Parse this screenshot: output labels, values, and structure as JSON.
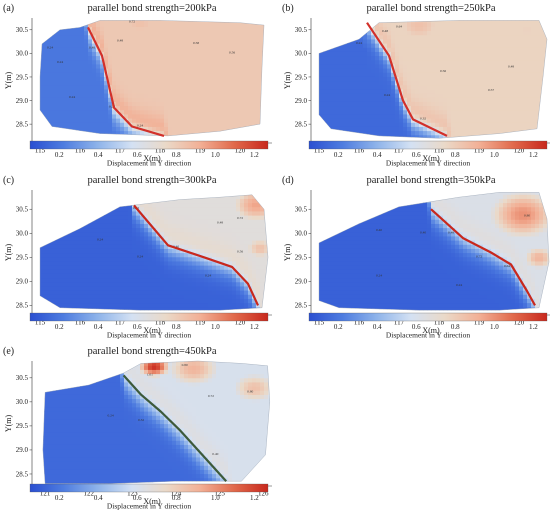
{
  "colorbar": {
    "stops": [
      "#2a4fd1",
      "#4f7de0",
      "#8fb4ea",
      "#d4e1f3",
      "#ead9c8",
      "#f2b096",
      "#e16a4c",
      "#c8281d"
    ],
    "ticks": [
      0.2,
      0.4,
      0.6,
      0.8,
      1.0,
      1.2
    ],
    "tick_labels": [
      "0.2",
      "0.4",
      "0.6",
      "0.8",
      "1.0",
      "1.2"
    ],
    "vmin": 0.05,
    "vmax": 1.27,
    "label": "Displacement in Y direction"
  },
  "chart_data": [
    {
      "type": "heatmap",
      "id": "a",
      "panel_label": "(a)",
      "title": "parallel bond strength=200kPa",
      "xlabel": "X(m)",
      "ylabel": "Y(m)",
      "xlim": [
        114.8,
        120.8
      ],
      "ylim": [
        28.1,
        30.75
      ],
      "xticks": [
        115,
        116,
        117,
        118,
        119,
        120
      ],
      "xtick_labels": [
        "115",
        "116",
        "117",
        "118",
        "119",
        "120"
      ],
      "yticks": [
        28.5,
        29.0,
        29.5,
        30.0,
        30.5
      ],
      "ytick_labels": [
        "28.5",
        "29.0",
        "29.5",
        "30.0",
        "30.5"
      ],
      "boundary": [
        [
          115.05,
          30.2
        ],
        [
          115.5,
          30.5
        ],
        [
          116.0,
          30.55
        ],
        [
          116.5,
          30.7
        ],
        [
          118.0,
          30.7
        ],
        [
          120.0,
          30.65
        ],
        [
          120.6,
          30.6
        ],
        [
          120.55,
          29.7
        ],
        [
          120.5,
          28.5
        ],
        [
          119.5,
          28.35
        ],
        [
          118.2,
          28.25
        ],
        [
          116.5,
          28.3
        ],
        [
          115.3,
          28.45
        ],
        [
          115.0,
          28.8
        ],
        [
          115.0,
          29.5
        ]
      ],
      "shear_band": [
        [
          116.2,
          30.55
        ],
        [
          116.55,
          29.95
        ],
        [
          116.85,
          28.85
        ],
        [
          117.3,
          28.45
        ],
        [
          118.1,
          28.25
        ]
      ],
      "band_color": "#d2302a",
      "hotspots": [
        {
          "x": 117.5,
          "y": 30.65,
          "v": 0.85,
          "s": 1.2
        },
        {
          "x": 119.8,
          "y": 30.6,
          "v": 0.8,
          "s": 1.0
        },
        {
          "x": 120.4,
          "y": 29.5,
          "v": 0.65,
          "s": 0.6
        }
      ],
      "bg": 0.2,
      "shoulder": 0.35,
      "jump": 0.62,
      "width": 0.22,
      "contour_labels": [
        {
          "x": 115.25,
          "y": 30.1,
          "t": "0.24"
        },
        {
          "x": 115.5,
          "y": 29.8,
          "t": "0.24"
        },
        {
          "x": 116.3,
          "y": 30.1,
          "t": "0.48"
        },
        {
          "x": 117.0,
          "y": 30.25,
          "t": "0.48"
        },
        {
          "x": 117.3,
          "y": 30.65,
          "t": "0.72"
        },
        {
          "x": 118.9,
          "y": 30.2,
          "t": "0.58"
        },
        {
          "x": 119.8,
          "y": 30.0,
          "t": "0.56"
        },
        {
          "x": 115.8,
          "y": 29.05,
          "t": "0.24"
        },
        {
          "x": 116.8,
          "y": 28.85,
          "t": "0.24"
        },
        {
          "x": 117.5,
          "y": 28.45,
          "t": "0.24"
        }
      ]
    },
    {
      "type": "heatmap",
      "id": "b",
      "panel_label": "(b)",
      "title": "parallel bond strength=250kPa",
      "xlabel": "X(m)",
      "ylabel": "Y(m)",
      "xlim": [
        114.8,
        120.8
      ],
      "ylim": [
        28.1,
        30.75
      ],
      "xticks": [
        115,
        116,
        117,
        118,
        119,
        120
      ],
      "xtick_labels": [
        "115",
        "116",
        "117",
        "118",
        "119",
        "120"
      ],
      "yticks": [
        28.5,
        29.0,
        29.5,
        30.0,
        30.5
      ],
      "ytick_labels": [
        "28.5",
        "29.0",
        "29.5",
        "30.0",
        "30.5"
      ],
      "boundary": [
        [
          115.0,
          30.0
        ],
        [
          116.0,
          30.3
        ],
        [
          116.5,
          30.65
        ],
        [
          118.5,
          30.7
        ],
        [
          120.5,
          30.7
        ],
        [
          120.7,
          30.3
        ],
        [
          120.6,
          29.5
        ],
        [
          120.45,
          28.4
        ],
        [
          119.5,
          28.3
        ],
        [
          118.0,
          28.2
        ],
        [
          116.5,
          28.25
        ],
        [
          115.3,
          28.4
        ],
        [
          115.0,
          28.7
        ]
      ],
      "shear_band": [
        [
          116.2,
          30.65
        ],
        [
          116.75,
          29.95
        ],
        [
          117.1,
          29.0
        ],
        [
          117.35,
          28.6
        ],
        [
          118.2,
          28.25
        ]
      ],
      "band_color": "#d2302a",
      "hotspots": [
        {
          "x": 117.5,
          "y": 30.6,
          "v": 0.85,
          "s": 1.2
        },
        {
          "x": 120.2,
          "y": 30.5,
          "v": 0.78,
          "s": 1.0
        }
      ],
      "bg": 0.15,
      "shoulder": 0.3,
      "jump": 0.62,
      "width": 0.25,
      "contour_labels": [
        {
          "x": 116.0,
          "y": 30.2,
          "t": "0.24"
        },
        {
          "x": 116.65,
          "y": 30.45,
          "t": "0.48"
        },
        {
          "x": 117.0,
          "y": 30.55,
          "t": "0.64"
        },
        {
          "x": 118.1,
          "y": 29.6,
          "t": "0.56"
        },
        {
          "x": 119.3,
          "y": 29.2,
          "t": "0.57"
        },
        {
          "x": 119.8,
          "y": 29.7,
          "t": "0.48"
        },
        {
          "x": 116.7,
          "y": 29.1,
          "t": "0.24"
        },
        {
          "x": 117.6,
          "y": 28.6,
          "t": "0.32"
        }
      ]
    },
    {
      "type": "heatmap",
      "id": "c",
      "panel_label": "(c)",
      "title": "parallel bond strength=300kPa",
      "xlabel": "X(m)",
      "ylabel": "Y(m)",
      "xlim": [
        114.8,
        120.8
      ],
      "ylim": [
        28.3,
        30.9
      ],
      "xticks": [
        115,
        116,
        117,
        118,
        119,
        120
      ],
      "xtick_labels": [
        "115",
        "116",
        "117",
        "118",
        "119",
        "120"
      ],
      "yticks": [
        28.5,
        29.0,
        29.5,
        30.0,
        30.5
      ],
      "ytick_labels": [
        "28.5",
        "29.0",
        "29.5",
        "30.0",
        "30.5"
      ],
      "boundary": [
        [
          115.0,
          29.7
        ],
        [
          116.0,
          30.1
        ],
        [
          117.0,
          30.55
        ],
        [
          118.5,
          30.7
        ],
        [
          119.5,
          30.75
        ],
        [
          120.3,
          30.8
        ],
        [
          120.6,
          30.5
        ],
        [
          120.7,
          29.5
        ],
        [
          120.55,
          28.45
        ],
        [
          119.5,
          28.4
        ],
        [
          117.5,
          28.4
        ],
        [
          115.5,
          28.45
        ],
        [
          115.0,
          28.7
        ]
      ],
      "shear_band": [
        [
          117.35,
          30.58
        ],
        [
          118.2,
          29.75
        ],
        [
          119.1,
          29.5
        ],
        [
          119.8,
          29.3
        ],
        [
          120.2,
          28.95
        ],
        [
          120.45,
          28.5
        ]
      ],
      "band_color": "#c8281d",
      "hotspots": [
        {
          "x": 120.4,
          "y": 30.6,
          "v": 0.95,
          "s": 0.9
        },
        {
          "x": 120.5,
          "y": 29.7,
          "v": 0.85,
          "s": 0.6
        }
      ],
      "bg": 0.12,
      "shoulder": 0.25,
      "jump": 0.55,
      "width": 0.28,
      "contour_labels": [
        {
          "x": 117.4,
          "y": 30.5,
          "t": "0.32"
        },
        {
          "x": 116.5,
          "y": 29.85,
          "t": "0.24"
        },
        {
          "x": 118.4,
          "y": 29.7,
          "t": "0.40"
        },
        {
          "x": 119.5,
          "y": 30.2,
          "t": "0.48"
        },
        {
          "x": 120.0,
          "y": 29.6,
          "t": "0.56"
        },
        {
          "x": 120.0,
          "y": 30.3,
          "t": "0.72"
        },
        {
          "x": 117.5,
          "y": 29.5,
          "t": "0.24"
        },
        {
          "x": 119.2,
          "y": 29.1,
          "t": "0.24"
        }
      ]
    },
    {
      "type": "heatmap",
      "id": "d",
      "panel_label": "(d)",
      "title": "parallel bond strength=350kPa",
      "xlabel": "X(m)",
      "ylabel": "Y(m)",
      "xlim": [
        114.8,
        120.8
      ],
      "ylim": [
        28.3,
        30.9
      ],
      "xticks": [
        115,
        116,
        117,
        118,
        119,
        120
      ],
      "xtick_labels": [
        "115",
        "116",
        "117",
        "118",
        "119",
        "120"
      ],
      "yticks": [
        28.5,
        29.0,
        29.5,
        30.0,
        30.5
      ],
      "ytick_labels": [
        "28.5",
        "29.0",
        "29.5",
        "30.0",
        "30.5"
      ],
      "boundary": [
        [
          115.0,
          29.8
        ],
        [
          116.0,
          30.2
        ],
        [
          117.0,
          30.55
        ],
        [
          118.5,
          30.75
        ],
        [
          119.5,
          30.85
        ],
        [
          120.5,
          30.85
        ],
        [
          120.7,
          30.3
        ],
        [
          120.75,
          29.4
        ],
        [
          120.5,
          28.45
        ],
        [
          119.5,
          28.4
        ],
        [
          117.5,
          28.4
        ],
        [
          115.5,
          28.45
        ],
        [
          115.0,
          28.6
        ]
      ],
      "shear_band": [
        [
          117.8,
          30.5
        ],
        [
          118.6,
          29.9
        ],
        [
          119.3,
          29.6
        ],
        [
          119.8,
          29.35
        ],
        [
          120.2,
          28.8
        ],
        [
          120.4,
          28.5
        ]
      ],
      "band_color": "#c8281d",
      "hotspots": [
        {
          "x": 120.1,
          "y": 30.4,
          "v": 1.0,
          "s": 1.2
        },
        {
          "x": 120.5,
          "y": 29.5,
          "v": 0.9,
          "s": 0.6
        }
      ],
      "bg": 0.12,
      "shoulder": 0.25,
      "jump": 0.5,
      "width": 0.3,
      "contour_labels": [
        {
          "x": 116.5,
          "y": 30.05,
          "t": "0.40"
        },
        {
          "x": 117.6,
          "y": 30.0,
          "t": "0.40"
        },
        {
          "x": 118.3,
          "y": 30.0,
          "t": "0.48"
        },
        {
          "x": 119.0,
          "y": 29.5,
          "t": "0.72"
        },
        {
          "x": 119.7,
          "y": 29.3,
          "t": "0.64"
        },
        {
          "x": 120.2,
          "y": 30.35,
          "t": "0.80"
        },
        {
          "x": 116.5,
          "y": 29.1,
          "t": "0.24"
        },
        {
          "x": 118.5,
          "y": 28.9,
          "t": "0.24"
        }
      ]
    },
    {
      "type": "heatmap",
      "id": "e",
      "panel_label": "(e)",
      "title": "parallel bond strength=450kPa",
      "xlabel": "X(m)",
      "ylabel": "Y(m)",
      "xlim": [
        120.7,
        126.2
      ],
      "ylim": [
        28.25,
        30.85
      ],
      "xticks": [
        121,
        122,
        123,
        124,
        125,
        126
      ],
      "xtick_labels": [
        "121",
        "122",
        "123",
        "124",
        "125",
        "126"
      ],
      "yticks": [
        28.5,
        29.0,
        29.5,
        30.0,
        30.5
      ],
      "ytick_labels": [
        "28.5",
        "29.0",
        "29.5",
        "30.0",
        "30.5"
      ],
      "boundary": [
        [
          121.0,
          30.2
        ],
        [
          122.0,
          30.35
        ],
        [
          122.8,
          30.6
        ],
        [
          123.2,
          30.8
        ],
        [
          124.5,
          30.85
        ],
        [
          125.5,
          30.8
        ],
        [
          126.1,
          30.75
        ],
        [
          126.15,
          30.0
        ],
        [
          126.05,
          28.9
        ],
        [
          125.5,
          28.35
        ],
        [
          124.0,
          28.35
        ],
        [
          122.5,
          28.3
        ],
        [
          121.0,
          28.3
        ],
        [
          120.95,
          29.0
        ]
      ],
      "shear_band": [
        [
          122.8,
          30.55
        ],
        [
          123.2,
          30.15
        ],
        [
          123.65,
          29.8
        ],
        [
          124.1,
          29.4
        ],
        [
          124.6,
          28.9
        ],
        [
          125.15,
          28.35
        ]
      ],
      "band_color": "#3d5a3a",
      "hotspots": [
        {
          "x": 123.5,
          "y": 30.75,
          "v": 1.25,
          "s": 0.45
        },
        {
          "x": 124.4,
          "y": 30.7,
          "v": 0.9,
          "s": 0.9
        },
        {
          "x": 125.8,
          "y": 30.3,
          "v": 0.85,
          "s": 0.8
        }
      ],
      "bg": 0.15,
      "shoulder": 0.3,
      "jump": 0.45,
      "width": 0.35,
      "contour_labels": [
        {
          "x": 123.4,
          "y": 30.55,
          "t": "1.01"
        },
        {
          "x": 124.2,
          "y": 30.75,
          "t": "0.80"
        },
        {
          "x": 124.8,
          "y": 30.1,
          "t": "0.72"
        },
        {
          "x": 125.7,
          "y": 30.2,
          "t": "0.80"
        },
        {
          "x": 122.5,
          "y": 29.7,
          "t": "0.24"
        },
        {
          "x": 123.2,
          "y": 29.6,
          "t": "0.32"
        },
        {
          "x": 124.9,
          "y": 28.9,
          "t": "0.40"
        }
      ]
    }
  ]
}
